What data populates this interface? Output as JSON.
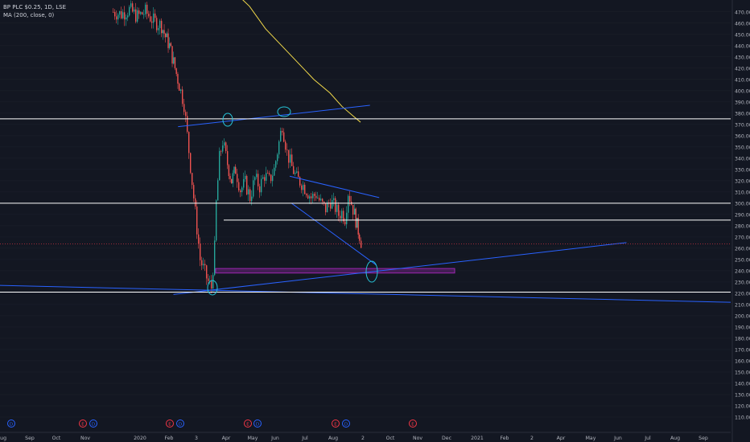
{
  "legend": {
    "symbol_line": "BP PLC $0.25, 1D, LSE",
    "ma_line": "MA (200, close, 0)"
  },
  "chart_data": {
    "type": "candlestick",
    "symbol": "BP PLC $0.25",
    "interval": "1D",
    "exchange": "LSE",
    "y_axis": {
      "min": 105,
      "max": 477,
      "ticks": [
        110,
        120,
        130,
        140,
        150,
        160,
        170,
        180,
        190,
        200,
        210,
        220,
        230,
        240,
        250,
        260,
        270,
        280,
        290,
        300,
        310,
        320,
        330,
        340,
        350,
        360,
        370,
        380,
        390,
        400,
        410,
        420,
        430,
        440,
        450,
        460,
        470
      ],
      "position": "right"
    },
    "x_axis_labels": [
      "Aug",
      "Sep",
      "Oct",
      "Nov",
      "2020",
      "Feb",
      "3",
      "Apr",
      "May",
      "Jun",
      "Jul",
      "Aug",
      "2",
      "Oct",
      "Nov",
      "Dec",
      "2021",
      "Feb",
      "2",
      "Apr",
      "May",
      "Jun",
      "Jul",
      "Aug",
      "Sep"
    ],
    "horizontal_levels": [
      {
        "value": 375.0,
        "label": "375.00",
        "color": "#ffffff"
      },
      {
        "value": 300.0,
        "label": "300.00",
        "color": "#ffffff"
      },
      {
        "value": 285.0,
        "label": "285.00",
        "color": "#ffffff"
      },
      {
        "value": 221.0,
        "label": "221.00",
        "color": "#ffffff"
      }
    ],
    "last_price": {
      "value": 264.0,
      "label": "264.00",
      "color": "#f23645"
    },
    "support_zone": {
      "from": 238,
      "to": 242,
      "color": "#9c27b0"
    },
    "trendlines": [
      {
        "name": "upper-resistance",
        "from": [
          "2020-02-10",
          368
        ],
        "to": [
          "2020-09-05",
          387
        ],
        "color": "#2962ff"
      },
      {
        "name": "rising-support",
        "from": [
          "2020-02-05",
          219
        ],
        "to": [
          "2021-06-10",
          265
        ],
        "color": "#2962ff"
      },
      {
        "name": "long-descending",
        "from": [
          "2019-08-01",
          227
        ],
        "to": [
          "2021-10-01",
          212
        ],
        "color": "#2962ff"
      },
      {
        "name": "channel-top",
        "from": [
          "2020-06-10",
          324
        ],
        "to": [
          "2020-09-15",
          305
        ],
        "color": "#2962ff"
      },
      {
        "name": "channel-bottom",
        "from": [
          "2020-06-12",
          300
        ],
        "to": [
          "2020-09-12",
          245
        ],
        "color": "#2962ff"
      }
    ],
    "ma200": {
      "name": "MA (200, close, 0)",
      "color": "#f0d84a",
      "values": [
        490,
        475,
        455,
        440,
        425,
        410,
        398,
        386,
        378,
        372
      ]
    },
    "price_path": [
      470,
      468,
      472,
      466,
      470,
      462,
      458,
      448,
      440,
      425,
      405,
      388,
      250,
      230,
      225,
      260,
      300,
      340,
      355,
      335,
      320,
      330,
      312,
      318,
      305,
      322,
      315,
      325,
      320,
      330,
      370,
      345,
      332,
      322,
      318,
      312,
      305,
      308,
      300,
      295,
      302,
      296,
      290,
      292,
      287,
      310,
      300,
      290,
      280,
      272,
      266,
      264
    ],
    "events": [
      {
        "label": "D",
        "color": "#2962ff"
      },
      {
        "label": "E",
        "color": "#f23645"
      },
      {
        "label": "D",
        "color": "#2962ff"
      },
      {
        "label": "E",
        "color": "#f23645"
      },
      {
        "label": "D",
        "color": "#2962ff"
      },
      {
        "label": "E",
        "color": "#f23645"
      },
      {
        "label": "D",
        "color": "#2962ff"
      },
      {
        "label": "E",
        "color": "#f23645"
      },
      {
        "label": "D",
        "color": "#2962ff"
      },
      {
        "label": "E",
        "color": "#f23645"
      }
    ],
    "colors": {
      "up": "#26a69a",
      "down": "#ef5350",
      "background": "#131722",
      "grid": "#1e222d"
    }
  }
}
